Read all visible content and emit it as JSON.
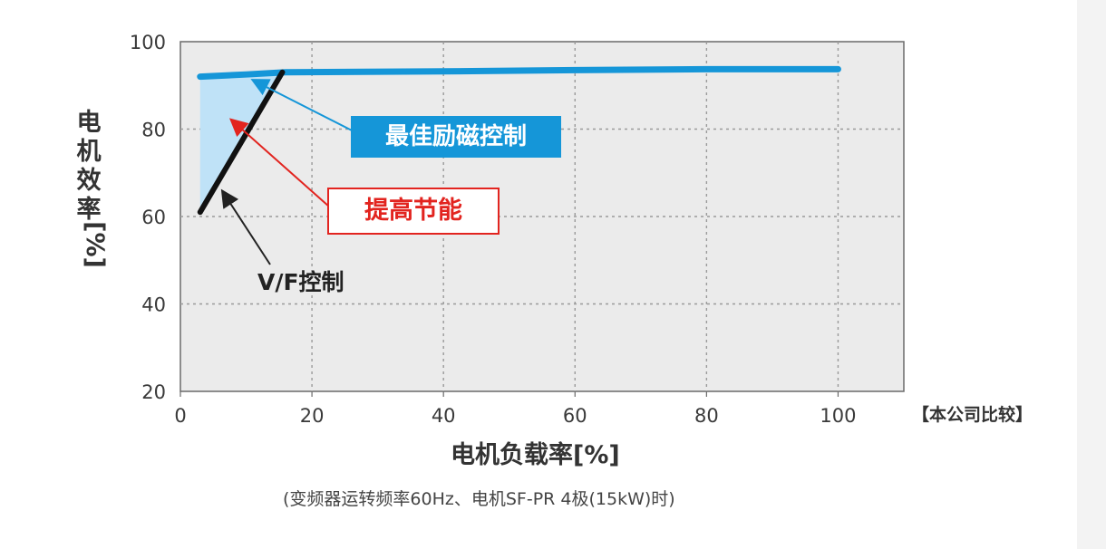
{
  "chart_data": {
    "type": "line",
    "xlabel": "电机负载率[%]",
    "ylabel_chars": [
      "电",
      "机",
      "效",
      "率"
    ],
    "ylabel_unit": "[%]",
    "xlim": [
      0,
      110
    ],
    "ylim": [
      20,
      100
    ],
    "x_ticks": [
      "0",
      "20",
      "40",
      "60",
      "80",
      "100"
    ],
    "y_ticks": [
      "20",
      "40",
      "60",
      "80",
      "100"
    ],
    "grid": true,
    "series": [
      {
        "name": "最佳励磁控制",
        "color": "#1596d8",
        "x": [
          3,
          10,
          16,
          40,
          60,
          80,
          100
        ],
        "y": [
          92,
          92.5,
          93,
          93.2,
          93.5,
          93.7,
          93.7
        ]
      },
      {
        "name": "V/F控制",
        "color": "#111111",
        "x": [
          3,
          15.5
        ],
        "y": [
          61,
          93
        ]
      }
    ],
    "fill_region": {
      "label": "提高节能",
      "color": "#bfe2f7",
      "x": [
        3,
        15.5
      ],
      "y_upper": [
        92,
        93
      ],
      "y_lower": [
        61,
        93
      ]
    }
  },
  "annotations": {
    "optimal_label": "最佳励磁控制",
    "savings_label": "提高节能",
    "vf_label": "V/F控制"
  },
  "company_note": "【本公司比较】",
  "caption": "(变频器运转频率60Hz、电机SF-PR 4极(15kW)时)"
}
